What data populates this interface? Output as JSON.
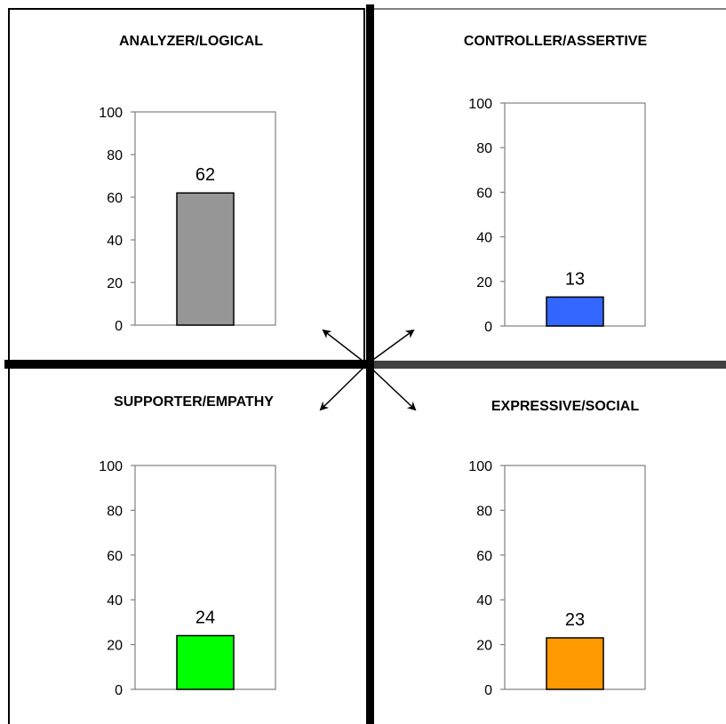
{
  "chart_data": [
    {
      "type": "bar",
      "title": "ANALYZER/LOGICAL",
      "categories": [
        ""
      ],
      "values": [
        62
      ],
      "data_labels": [
        "62"
      ],
      "ylim": [
        0,
        100
      ],
      "yticks": [
        "0",
        "20",
        "40",
        "60",
        "80",
        "100"
      ],
      "bar_color": "#969696",
      "xlabel": "",
      "ylabel": "",
      "grid": false,
      "legend": "none"
    },
    {
      "type": "bar",
      "title": "CONTROLLER/ASSERTIVE",
      "categories": [
        ""
      ],
      "values": [
        13
      ],
      "data_labels": [
        "13"
      ],
      "ylim": [
        0,
        100
      ],
      "yticks": [
        "0",
        "20",
        "40",
        "60",
        "80",
        "100"
      ],
      "bar_color": "#3366ff",
      "xlabel": "",
      "ylabel": "",
      "grid": false,
      "legend": "none"
    },
    {
      "type": "bar",
      "title": "SUPPORTER/EMPATHY",
      "categories": [
        ""
      ],
      "values": [
        24
      ],
      "data_labels": [
        "24"
      ],
      "ylim": [
        0,
        100
      ],
      "yticks": [
        "0",
        "20",
        "40",
        "60",
        "80",
        "100"
      ],
      "bar_color": "#00ff00",
      "xlabel": "",
      "ylabel": "",
      "grid": false,
      "legend": "none"
    },
    {
      "type": "bar",
      "title": "EXPRESSIVE/SOCIAL",
      "categories": [
        ""
      ],
      "values": [
        23
      ],
      "data_labels": [
        "23"
      ],
      "ylim": [
        0,
        100
      ],
      "yticks": [
        "0",
        "20",
        "40",
        "60",
        "80",
        "100"
      ],
      "bar_color": "#ff9900",
      "xlabel": "",
      "ylabel": "",
      "grid": false,
      "legend": "none"
    }
  ],
  "colors": {
    "divider_dark": "#000000",
    "divider_gray": "#404040",
    "plot_border": "#808080"
  },
  "icons": {
    "arrows": "four-diagonal-double-arrows"
  }
}
